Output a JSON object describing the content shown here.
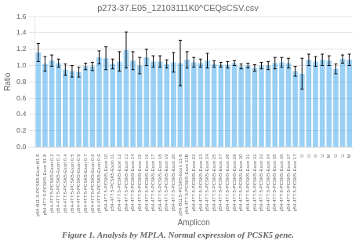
{
  "chart_data": {
    "type": "bar",
    "title": "p273-37.E05_12103111K0^CEQsCSV.csv",
    "xlabel": "Amplicon",
    "ylabel": "Ratio",
    "caption": "Figure 1. Analysis by MPLA. Normal expression of PCSK5 gene.",
    "categories": [
      "p54-B11.S-PCSK5-Exon B1.8",
      "p54-4T7.5-PCSK5-Exon 01.8",
      "p54-4T7.5-PCSK5-Exon 0.2",
      "p54-4T7.5-PCSK5-Exon 0.3",
      "p54-4T7.5-PCSK5-Exon 0.4",
      "p54-4T7.5-PCSK5-Exon 0.5",
      "p54-4T7.5-PCSK5-Exon 0.5",
      "p54-4T7.5-PCSK5-Exon 0.7",
      "p54-4T7.5-PCSK5-Exon 0.9",
      "p54-4T7.5-PCSK5-Exon 0.9",
      "p54-4T7.5-PCSK5-Exon 10",
      "p54-4T7.5-PCSK5-Exon 11",
      "p54-4T7.5-PCSK5-Exon 12",
      "p54-4T7.5-PCSK5-Exon 13",
      "p54-4T7.5-PCSK5-Exon 14",
      "p54-4T7.5-PCSK5-Exon 15",
      "p54-4T7.5-PCSK5-Exon 16",
      "p54-4T7.5-PCSK5-Exon 17",
      "p54-4T7.5-PCSK5-Exon 18",
      "p54-4T7.5-PCSK5-Exon 19",
      "p54-4T7.5-PCSK5-Exon 20",
      "p54-B11.5-PCSK5-Exon 21-8",
      "p54-4T7.5-PCSK5-Exon 21B",
      "p54-4T7.5-PCSK5-Exon 22",
      "p54-4T7.5-PCSK5-Exon 23",
      "p54-4T7.5-PCSK5-Exon 24",
      "p54-4T7.5-PCSK5-Exon 25",
      "p54-4T7.5-PCSK5-Exon 27",
      "p54-4T7.5-PCSK5-Exon 28",
      "p54-4T7.5-PCSK5-Exon 29",
      "p54-4T7.5-PCSK5-Exon 30",
      "p54-4T7.5-PCSK5-Exon 31",
      "p54-4T7.5-PCSK5-Exon 32",
      "p54-4T7.5-PCSK5-Exon 33",
      "p54-4T7.5-PCSK5-Exon 34",
      "p54-4T7.5-PCSK5-Exon 35",
      "p54-4T7.5-PCSK5-Exon 36",
      "p54-4T7.5-PCSK5-Exon 37",
      "p54-4T7.5-PCSK5-Exon 17",
      "U",
      "U",
      "U",
      "U",
      "M",
      "U",
      "U",
      "M"
    ],
    "values": [
      1.16,
      1.02,
      1.06,
      1.03,
      0.95,
      0.93,
      0.92,
      0.99,
      0.99,
      1.1,
      1.09,
      1.02,
      1.05,
      1.19,
      1.06,
      1.0,
      1.1,
      1.05,
      1.05,
      1.02,
      1.04,
      1.03,
      1.07,
      1.04,
      1.03,
      1.06,
      1.02,
      1.01,
      1.01,
      1.03,
      0.99,
      1.0,
      0.97,
      1.0,
      1.0,
      1.03,
      1.04,
      1.03,
      0.93,
      0.9,
      1.07,
      1.05,
      1.07,
      1.06,
      0.96,
      1.08,
      1.07
    ],
    "errors": [
      0.11,
      0.09,
      0.07,
      0.05,
      0.07,
      0.07,
      0.06,
      0.04,
      0.05,
      0.08,
      0.14,
      0.06,
      0.12,
      0.22,
      0.11,
      0.1,
      0.1,
      0.07,
      0.07,
      0.05,
      0.12,
      0.28,
      0.1,
      0.06,
      0.05,
      0.09,
      0.04,
      0.03,
      0.04,
      0.03,
      0.03,
      0.03,
      0.04,
      0.04,
      0.05,
      0.07,
      0.06,
      0.06,
      0.06,
      0.19,
      0.07,
      0.06,
      0.07,
      0.06,
      0.06,
      0.05,
      0.07
    ],
    "ylim": [
      0,
      1.6
    ],
    "yticks": [
      {
        "value": 0,
        "label": "0.0"
      },
      0.2,
      0.4,
      0.6,
      0.8,
      {
        "value": 1.0,
        "label": "1.0"
      },
      1.2,
      1.4,
      1.6
    ],
    "grid": true
  }
}
